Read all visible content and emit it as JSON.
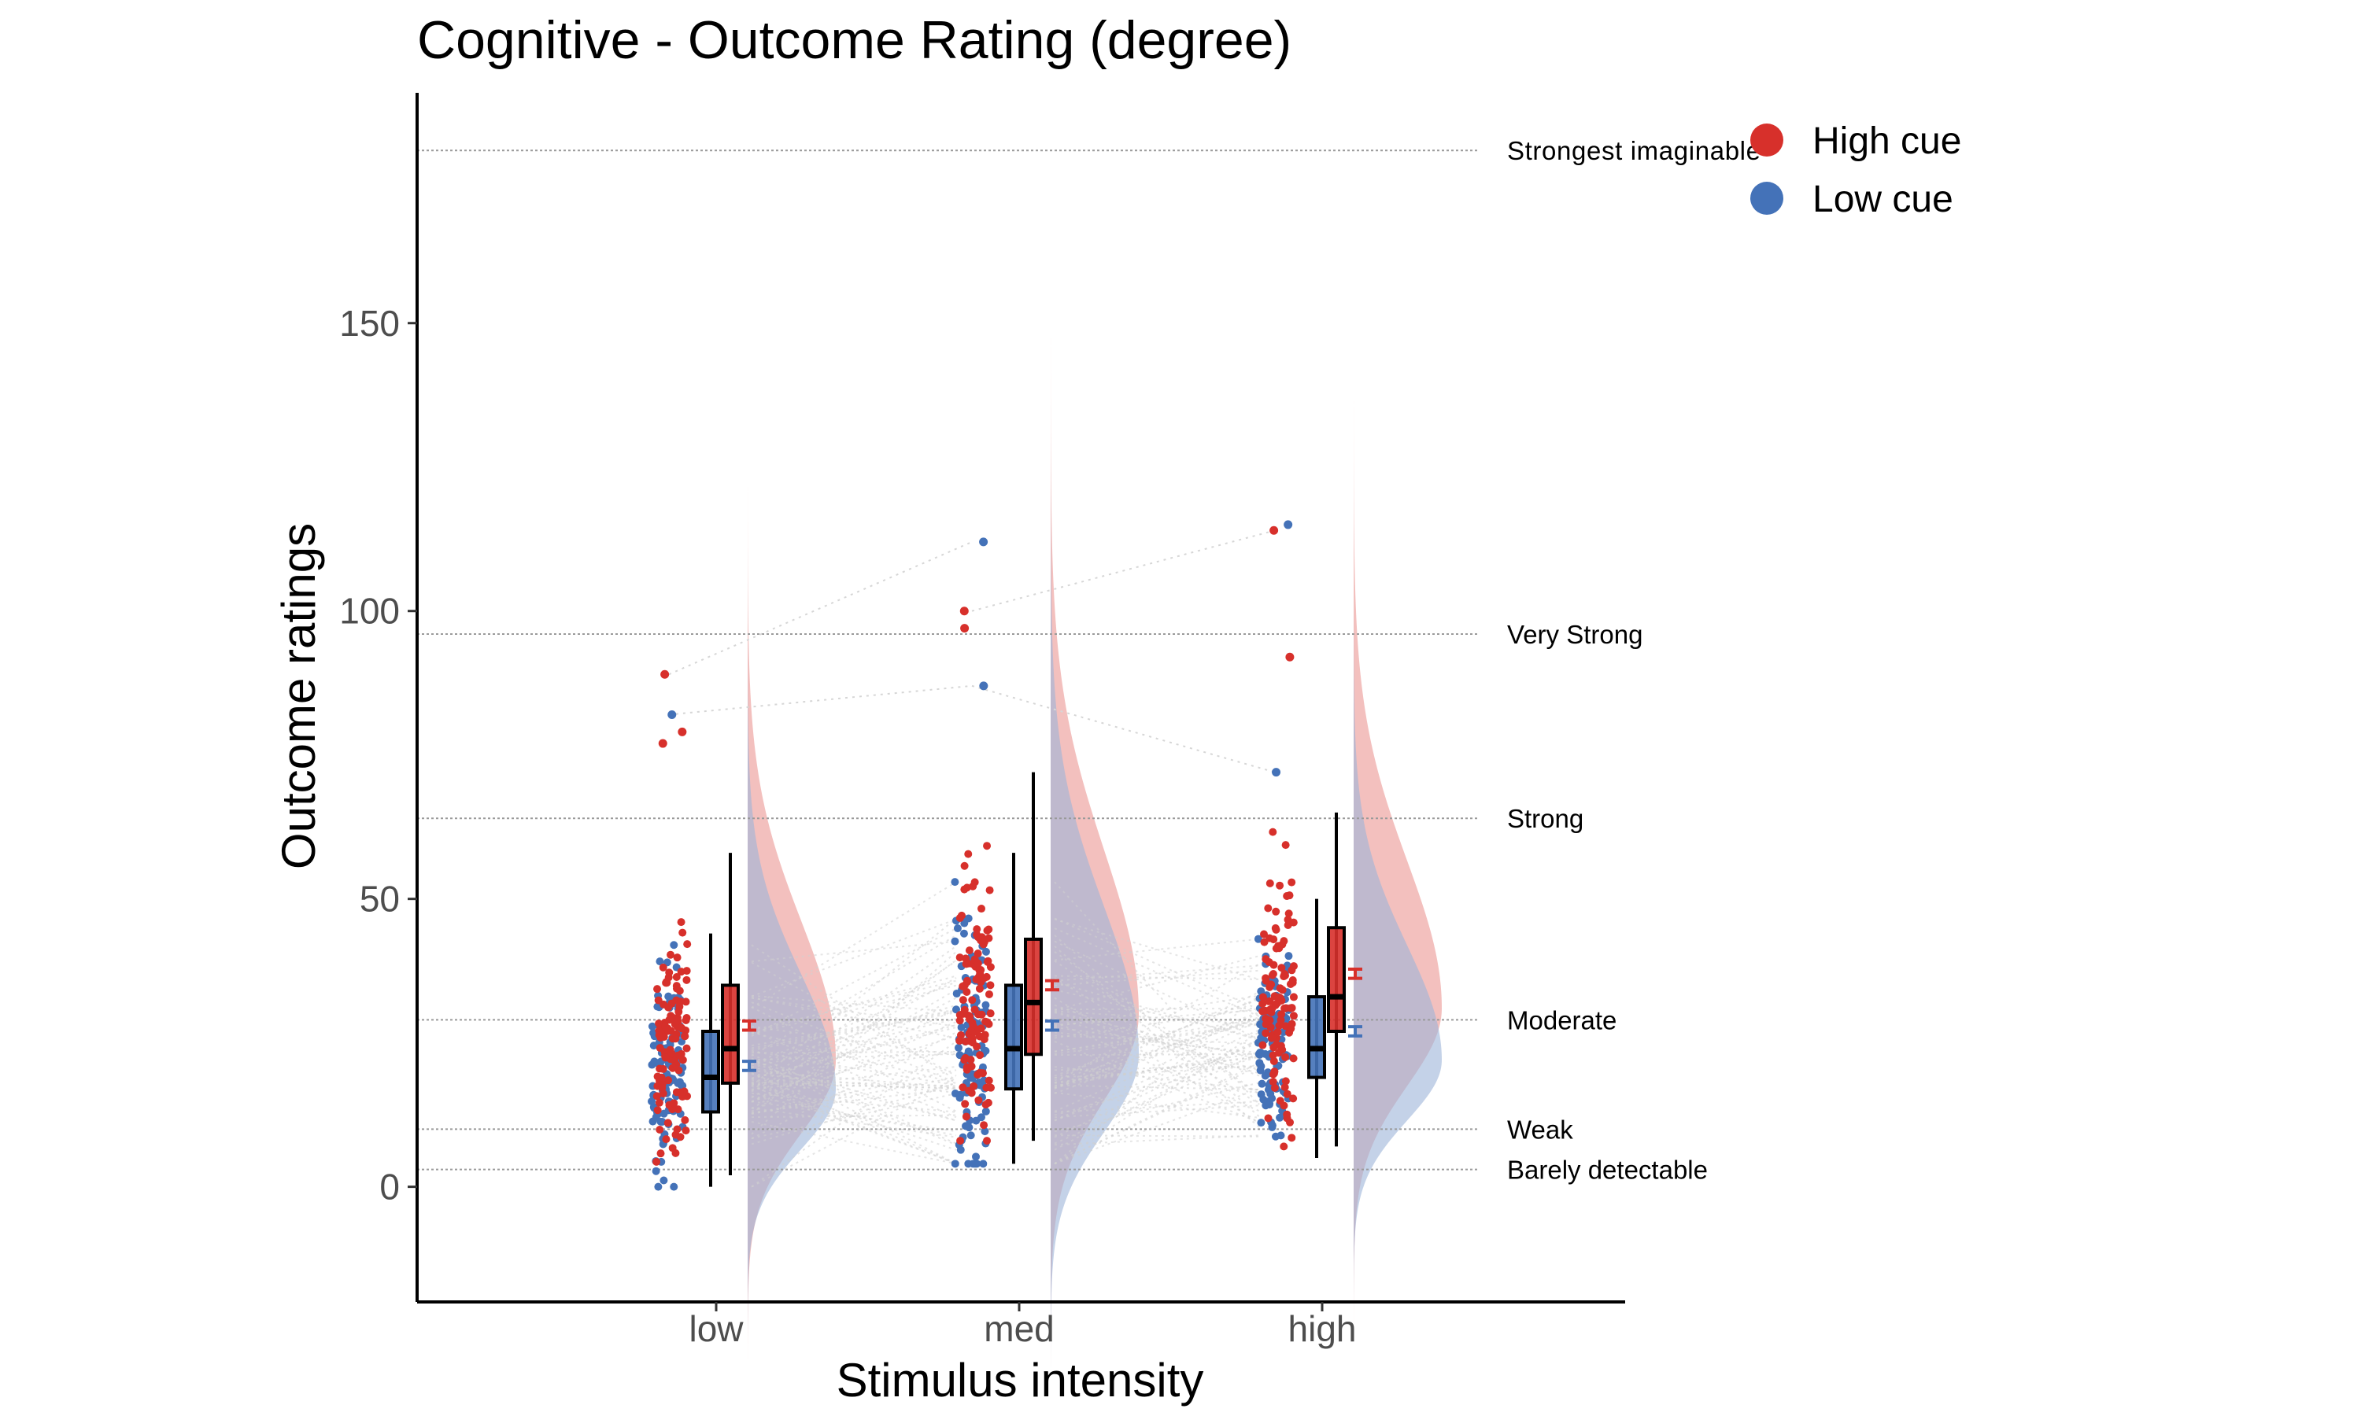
{
  "chart_data": {
    "type": "raincloud",
    "title": "Cognitive - Outcome Rating (degree)",
    "xlabel": "Stimulus intensity",
    "ylabel": "Outcome ratings",
    "categories": [
      "low",
      "med",
      "high"
    ],
    "ylim": [
      -20,
      190
    ],
    "yticks": [
      0,
      50,
      100,
      150
    ],
    "reference_lines": [
      {
        "label": "Strongest imaginable",
        "value": 180
      },
      {
        "label": "Very Strong",
        "value": 96
      },
      {
        "label": "Strong",
        "value": 64
      },
      {
        "label": "Moderate",
        "value": 29
      },
      {
        "label": "Weak",
        "value": 10
      },
      {
        "label": "Barely detectable",
        "value": 3
      }
    ],
    "legend": {
      "position": "top-right"
    },
    "series": [
      {
        "name": "Low cue",
        "color": "#4472b8",
        "boxplot": [
          {
            "category": "low",
            "min": 0,
            "q1": 13,
            "median": 19,
            "q3": 27,
            "max": 44
          },
          {
            "category": "med",
            "min": 4,
            "q1": 17,
            "median": 24,
            "q3": 35,
            "max": 58
          },
          {
            "category": "high",
            "min": 5,
            "q1": 19,
            "median": 24,
            "q3": 33,
            "max": 50
          }
        ],
        "mean": [
          {
            "category": "low",
            "value": 21,
            "se": 0.8
          },
          {
            "category": "med",
            "value": 28,
            "se": 0.8
          },
          {
            "category": "high",
            "value": 27,
            "se": 0.8
          }
        ],
        "density_peak": [
          17,
          23,
          22
        ],
        "outliers": [
          {
            "category": "low",
            "value": 82
          },
          {
            "category": "med",
            "value": 112
          },
          {
            "category": "med",
            "value": 87
          },
          {
            "category": "high",
            "value": 115
          },
          {
            "category": "high",
            "value": 72
          }
        ]
      },
      {
        "name": "High cue",
        "color": "#d7302b",
        "boxplot": [
          {
            "category": "low",
            "min": 2,
            "q1": 18,
            "median": 24,
            "q3": 35,
            "max": 58
          },
          {
            "category": "med",
            "min": 8,
            "q1": 23,
            "median": 32,
            "q3": 43,
            "max": 72
          },
          {
            "category": "high",
            "min": 7,
            "q1": 27,
            "median": 33,
            "q3": 45,
            "max": 65
          }
        ],
        "mean": [
          {
            "category": "low",
            "value": 28,
            "se": 0.8
          },
          {
            "category": "med",
            "value": 35,
            "se": 0.8
          },
          {
            "category": "high",
            "value": 37,
            "se": 0.8
          }
        ],
        "density_peak": [
          22,
          30,
          31
        ],
        "outliers": [
          {
            "category": "low",
            "value": 89
          },
          {
            "category": "low",
            "value": 79
          },
          {
            "category": "low",
            "value": 77
          },
          {
            "category": "med",
            "value": 100
          },
          {
            "category": "med",
            "value": 97
          },
          {
            "category": "high",
            "value": 114
          },
          {
            "category": "high",
            "value": 92
          }
        ]
      }
    ]
  }
}
